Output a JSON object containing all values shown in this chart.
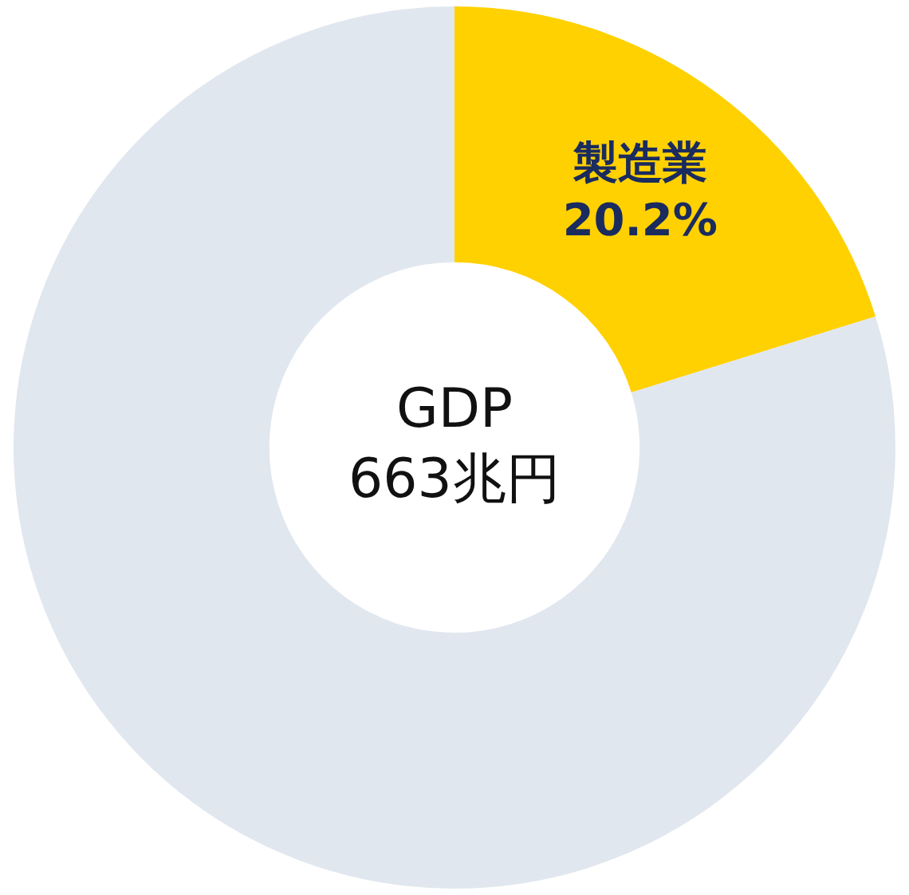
{
  "chart_data": {
    "type": "donut",
    "categories": [
      "製造業",
      null
    ],
    "values": [
      20.2,
      79.8
    ],
    "colors": [
      "#ffd100",
      "#e1e7ef"
    ],
    "value_labels": [
      "20.2%",
      null
    ],
    "annotations": [
      "GDP",
      "663兆円"
    ]
  }
}
